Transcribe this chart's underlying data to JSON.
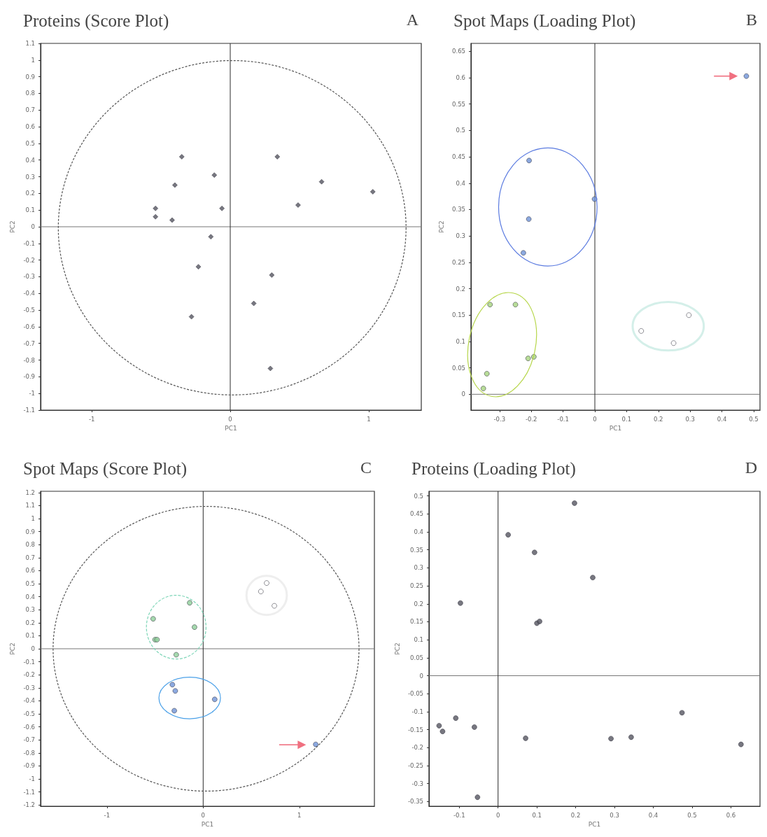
{
  "chart_data": [
    {
      "type": "scatter",
      "title": "Proteins (Score Plot)",
      "annotations": [
        "A"
      ],
      "xlabel": "PC1",
      "ylabel": "PC2",
      "marker": "diamond",
      "xlim": [
        -1.37,
        1.38
      ],
      "ylim": [
        -1.1,
        1.1
      ],
      "xticks": [
        -1,
        0,
        1
      ],
      "yticks": [
        -1.1,
        -1,
        -0.9,
        -0.8,
        -0.7,
        -0.6,
        -0.5,
        -0.4,
        -0.3,
        -0.2,
        -0.1,
        0,
        0.1,
        0.2,
        0.3,
        0.4,
        0.5,
        0.6,
        0.7,
        0.8,
        0.9,
        1,
        1.1
      ],
      "ref_lines": [
        {
          "axis": "x",
          "value": 0
        },
        {
          "axis": "y",
          "value": 0
        }
      ],
      "series": [
        {
          "color": "#555560",
          "x": [
            -0.35,
            -0.115,
            -0.4,
            -0.54,
            -0.54,
            -0.42,
            -0.06,
            0.34,
            0.66,
            1.03,
            0.49,
            -0.14,
            -0.23,
            0.3,
            0.17,
            -0.28,
            0.29
          ],
          "values": [
            0.42,
            0.31,
            0.25,
            0.11,
            0.06,
            0.04,
            0.11,
            0.42,
            0.27,
            0.21,
            0.13,
            -0.06,
            -0.24,
            -0.29,
            -0.46,
            -0.54,
            -0.85
          ]
        }
      ]
    },
    {
      "type": "scatter",
      "title": "Spot Maps (Loading Plot)",
      "annotations": [
        "B"
      ],
      "xlabel": "PC1",
      "ylabel": "PC2",
      "marker": "circle",
      "xlim": [
        -0.39,
        0.52
      ],
      "ylim": [
        -0.03,
        0.665
      ],
      "xticks": [
        -0.3,
        -0.2,
        -0.1,
        0,
        0.1,
        0.2,
        0.3,
        0.4,
        0.5
      ],
      "yticks": [
        0,
        0.05,
        0.1,
        0.15,
        0.2,
        0.25,
        0.3,
        0.35,
        0.4,
        0.45,
        0.5,
        0.55,
        0.6,
        0.65
      ],
      "ref_lines": [
        {
          "axis": "x",
          "value": 0
        },
        {
          "axis": "y",
          "value": 0
        }
      ],
      "series": [
        {
          "color": "#6f93d8",
          "x": [
            0.477,
            -0.207,
            -0.001,
            -0.208,
            -0.225
          ],
          "values": [
            0.603,
            0.443,
            0.37,
            0.332,
            0.268
          ]
        },
        {
          "color": "#a6d47e",
          "x": [
            -0.33,
            -0.25,
            -0.21,
            -0.192,
            -0.34,
            -0.351
          ],
          "values": [
            0.17,
            0.17,
            0.068,
            0.071,
            0.039,
            0.011
          ]
        },
        {
          "color": "#ffffff",
          "x": [
            0.146,
            0.296,
            0.248
          ],
          "values": [
            0.12,
            0.15,
            0.097
          ]
        }
      ]
    },
    {
      "type": "scatter",
      "title": "Spot Maps (Score Plot)",
      "annotations": [
        "C"
      ],
      "xlabel": "PC1",
      "ylabel": "PC2",
      "marker": "circle",
      "xlim": [
        -1.69,
        1.78
      ],
      "ylim": [
        -1.21,
        1.21
      ],
      "xticks": [
        -1,
        0,
        1
      ],
      "yticks": [
        -1.2,
        -1.1,
        -1,
        -0.9,
        -0.8,
        -0.7,
        -0.6,
        -0.5,
        -0.4,
        -0.3,
        -0.2,
        -0.1,
        0,
        0.1,
        0.2,
        0.3,
        0.4,
        0.5,
        0.6,
        0.7,
        0.8,
        0.9,
        1,
        1.1,
        1.2
      ],
      "ref_lines": [
        {
          "axis": "x",
          "value": 0
        },
        {
          "axis": "y",
          "value": 0
        }
      ],
      "series": [
        {
          "color": "#ffffff",
          "x": [
            0.66,
            0.6,
            0.74
          ],
          "values": [
            0.505,
            0.44,
            0.33
          ]
        },
        {
          "color": "#8fcf9a",
          "x": [
            -0.14,
            -0.52,
            -0.09,
            -0.5,
            -0.48,
            -0.28
          ],
          "values": [
            0.353,
            0.23,
            0.166,
            0.07,
            0.07,
            -0.046
          ]
        },
        {
          "color": "#6f93d8",
          "x": [
            -0.32,
            -0.29,
            0.12,
            -0.3,
            1.17
          ],
          "values": [
            -0.276,
            -0.324,
            -0.389,
            -0.476,
            -0.735
          ]
        }
      ]
    },
    {
      "type": "scatter",
      "title": "Proteins (Loading Plot)",
      "annotations": [
        "D"
      ],
      "xlabel": "PC1",
      "ylabel": "PC2",
      "marker": "circle",
      "xlim": [
        -0.178,
        0.675
      ],
      "ylim": [
        -0.363,
        0.513
      ],
      "xticks": [
        -0.1,
        0,
        0.1,
        0.2,
        0.3,
        0.4,
        0.5,
        0.6
      ],
      "yticks": [
        -0.35,
        -0.3,
        -0.25,
        -0.2,
        -0.15,
        -0.1,
        -0.05,
        0,
        0.05,
        0.1,
        0.15,
        0.2,
        0.25,
        0.3,
        0.35,
        0.4,
        0.45,
        0.5
      ],
      "ref_lines": [
        {
          "axis": "x",
          "value": 0
        },
        {
          "axis": "y",
          "value": 0
        }
      ],
      "series": [
        {
          "color": "#555560",
          "x": [
            0.197,
            0.026,
            0.094,
            0.244,
            -0.097,
            0.1,
            0.107,
            0.474,
            -0.109,
            -0.152,
            -0.143,
            -0.061,
            0.071,
            0.291,
            0.343,
            0.626,
            -0.053
          ],
          "values": [
            0.48,
            0.392,
            0.343,
            0.273,
            0.202,
            0.146,
            0.151,
            -0.103,
            -0.118,
            -0.139,
            -0.155,
            -0.143,
            -0.174,
            -0.175,
            -0.171,
            -0.191,
            -0.338
          ]
        }
      ]
    }
  ]
}
